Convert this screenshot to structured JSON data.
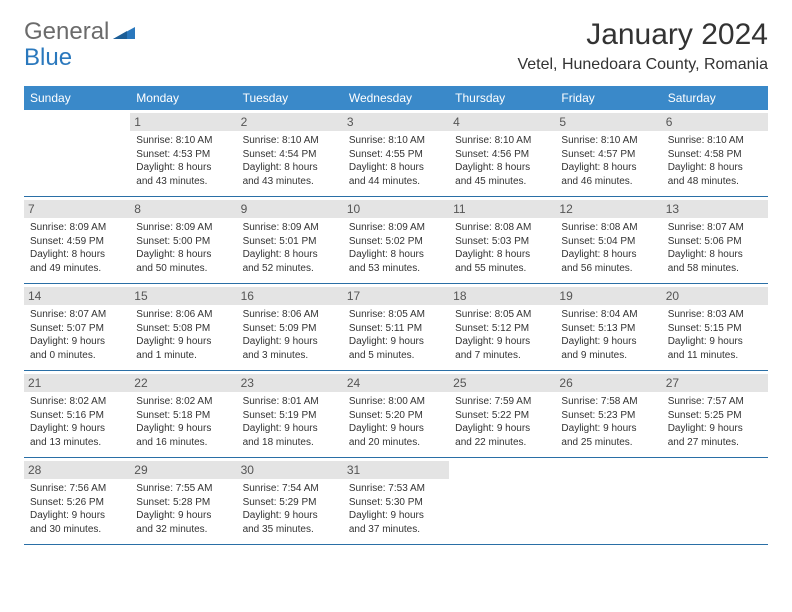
{
  "brand": {
    "general": "General",
    "blue": "Blue"
  },
  "title": "January 2024",
  "location": "Vetel, Hunedoara County, Romania",
  "colors": {
    "header_bg": "#3a89c9",
    "daynum_bg": "#e4e4e4",
    "row_border": "#2a6fa6",
    "brand_blue": "#2a78bd",
    "brand_gray": "#6b6b6b"
  },
  "dows": [
    "Sunday",
    "Monday",
    "Tuesday",
    "Wednesday",
    "Thursday",
    "Friday",
    "Saturday"
  ],
  "weeks": [
    [
      {
        "n": "",
        "sunrise": "",
        "sunset": "",
        "day1": "",
        "day2": ""
      },
      {
        "n": "1",
        "sunrise": "Sunrise: 8:10 AM",
        "sunset": "Sunset: 4:53 PM",
        "day1": "Daylight: 8 hours",
        "day2": "and 43 minutes."
      },
      {
        "n": "2",
        "sunrise": "Sunrise: 8:10 AM",
        "sunset": "Sunset: 4:54 PM",
        "day1": "Daylight: 8 hours",
        "day2": "and 43 minutes."
      },
      {
        "n": "3",
        "sunrise": "Sunrise: 8:10 AM",
        "sunset": "Sunset: 4:55 PM",
        "day1": "Daylight: 8 hours",
        "day2": "and 44 minutes."
      },
      {
        "n": "4",
        "sunrise": "Sunrise: 8:10 AM",
        "sunset": "Sunset: 4:56 PM",
        "day1": "Daylight: 8 hours",
        "day2": "and 45 minutes."
      },
      {
        "n": "5",
        "sunrise": "Sunrise: 8:10 AM",
        "sunset": "Sunset: 4:57 PM",
        "day1": "Daylight: 8 hours",
        "day2": "and 46 minutes."
      },
      {
        "n": "6",
        "sunrise": "Sunrise: 8:10 AM",
        "sunset": "Sunset: 4:58 PM",
        "day1": "Daylight: 8 hours",
        "day2": "and 48 minutes."
      }
    ],
    [
      {
        "n": "7",
        "sunrise": "Sunrise: 8:09 AM",
        "sunset": "Sunset: 4:59 PM",
        "day1": "Daylight: 8 hours",
        "day2": "and 49 minutes."
      },
      {
        "n": "8",
        "sunrise": "Sunrise: 8:09 AM",
        "sunset": "Sunset: 5:00 PM",
        "day1": "Daylight: 8 hours",
        "day2": "and 50 minutes."
      },
      {
        "n": "9",
        "sunrise": "Sunrise: 8:09 AM",
        "sunset": "Sunset: 5:01 PM",
        "day1": "Daylight: 8 hours",
        "day2": "and 52 minutes."
      },
      {
        "n": "10",
        "sunrise": "Sunrise: 8:09 AM",
        "sunset": "Sunset: 5:02 PM",
        "day1": "Daylight: 8 hours",
        "day2": "and 53 minutes."
      },
      {
        "n": "11",
        "sunrise": "Sunrise: 8:08 AM",
        "sunset": "Sunset: 5:03 PM",
        "day1": "Daylight: 8 hours",
        "day2": "and 55 minutes."
      },
      {
        "n": "12",
        "sunrise": "Sunrise: 8:08 AM",
        "sunset": "Sunset: 5:04 PM",
        "day1": "Daylight: 8 hours",
        "day2": "and 56 minutes."
      },
      {
        "n": "13",
        "sunrise": "Sunrise: 8:07 AM",
        "sunset": "Sunset: 5:06 PM",
        "day1": "Daylight: 8 hours",
        "day2": "and 58 minutes."
      }
    ],
    [
      {
        "n": "14",
        "sunrise": "Sunrise: 8:07 AM",
        "sunset": "Sunset: 5:07 PM",
        "day1": "Daylight: 9 hours",
        "day2": "and 0 minutes."
      },
      {
        "n": "15",
        "sunrise": "Sunrise: 8:06 AM",
        "sunset": "Sunset: 5:08 PM",
        "day1": "Daylight: 9 hours",
        "day2": "and 1 minute."
      },
      {
        "n": "16",
        "sunrise": "Sunrise: 8:06 AM",
        "sunset": "Sunset: 5:09 PM",
        "day1": "Daylight: 9 hours",
        "day2": "and 3 minutes."
      },
      {
        "n": "17",
        "sunrise": "Sunrise: 8:05 AM",
        "sunset": "Sunset: 5:11 PM",
        "day1": "Daylight: 9 hours",
        "day2": "and 5 minutes."
      },
      {
        "n": "18",
        "sunrise": "Sunrise: 8:05 AM",
        "sunset": "Sunset: 5:12 PM",
        "day1": "Daylight: 9 hours",
        "day2": "and 7 minutes."
      },
      {
        "n": "19",
        "sunrise": "Sunrise: 8:04 AM",
        "sunset": "Sunset: 5:13 PM",
        "day1": "Daylight: 9 hours",
        "day2": "and 9 minutes."
      },
      {
        "n": "20",
        "sunrise": "Sunrise: 8:03 AM",
        "sunset": "Sunset: 5:15 PM",
        "day1": "Daylight: 9 hours",
        "day2": "and 11 minutes."
      }
    ],
    [
      {
        "n": "21",
        "sunrise": "Sunrise: 8:02 AM",
        "sunset": "Sunset: 5:16 PM",
        "day1": "Daylight: 9 hours",
        "day2": "and 13 minutes."
      },
      {
        "n": "22",
        "sunrise": "Sunrise: 8:02 AM",
        "sunset": "Sunset: 5:18 PM",
        "day1": "Daylight: 9 hours",
        "day2": "and 16 minutes."
      },
      {
        "n": "23",
        "sunrise": "Sunrise: 8:01 AM",
        "sunset": "Sunset: 5:19 PM",
        "day1": "Daylight: 9 hours",
        "day2": "and 18 minutes."
      },
      {
        "n": "24",
        "sunrise": "Sunrise: 8:00 AM",
        "sunset": "Sunset: 5:20 PM",
        "day1": "Daylight: 9 hours",
        "day2": "and 20 minutes."
      },
      {
        "n": "25",
        "sunrise": "Sunrise: 7:59 AM",
        "sunset": "Sunset: 5:22 PM",
        "day1": "Daylight: 9 hours",
        "day2": "and 22 minutes."
      },
      {
        "n": "26",
        "sunrise": "Sunrise: 7:58 AM",
        "sunset": "Sunset: 5:23 PM",
        "day1": "Daylight: 9 hours",
        "day2": "and 25 minutes."
      },
      {
        "n": "27",
        "sunrise": "Sunrise: 7:57 AM",
        "sunset": "Sunset: 5:25 PM",
        "day1": "Daylight: 9 hours",
        "day2": "and 27 minutes."
      }
    ],
    [
      {
        "n": "28",
        "sunrise": "Sunrise: 7:56 AM",
        "sunset": "Sunset: 5:26 PM",
        "day1": "Daylight: 9 hours",
        "day2": "and 30 minutes."
      },
      {
        "n": "29",
        "sunrise": "Sunrise: 7:55 AM",
        "sunset": "Sunset: 5:28 PM",
        "day1": "Daylight: 9 hours",
        "day2": "and 32 minutes."
      },
      {
        "n": "30",
        "sunrise": "Sunrise: 7:54 AM",
        "sunset": "Sunset: 5:29 PM",
        "day1": "Daylight: 9 hours",
        "day2": "and 35 minutes."
      },
      {
        "n": "31",
        "sunrise": "Sunrise: 7:53 AM",
        "sunset": "Sunset: 5:30 PM",
        "day1": "Daylight: 9 hours",
        "day2": "and 37 minutes."
      },
      {
        "n": "",
        "sunrise": "",
        "sunset": "",
        "day1": "",
        "day2": ""
      },
      {
        "n": "",
        "sunrise": "",
        "sunset": "",
        "day1": "",
        "day2": ""
      },
      {
        "n": "",
        "sunrise": "",
        "sunset": "",
        "day1": "",
        "day2": ""
      }
    ]
  ]
}
